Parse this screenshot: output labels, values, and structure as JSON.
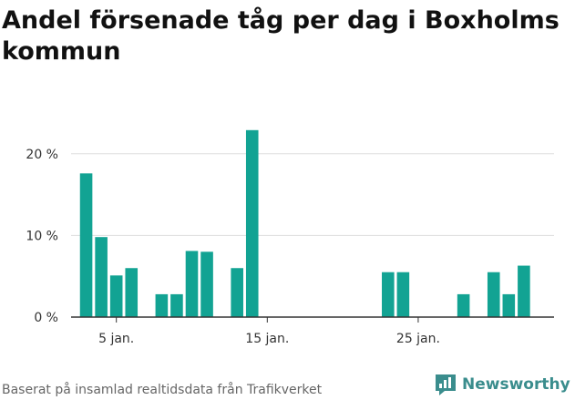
{
  "title": "Andel försenade tåg per dag i Boxholms kommun",
  "footer": "Baserat på insamlad realtidsdata från Trafikverket",
  "brand": {
    "name": "Newsworthy",
    "icon": "newsworthy-logo-icon",
    "color": "#3a8d8d"
  },
  "colors": {
    "bar": "#12a393",
    "grid": "#dddddd",
    "axis": "#333333"
  },
  "chart_data": {
    "type": "bar",
    "title": "Andel försenade tåg per dag i Boxholms kommun",
    "xlabel": "",
    "ylabel": "",
    "x_unit": "day of January",
    "x": [
      3,
      4,
      5,
      6,
      8,
      9,
      10,
      11,
      13,
      14,
      23,
      24,
      28,
      30,
      31,
      32
    ],
    "values": [
      17.6,
      9.8,
      5.1,
      6.0,
      2.8,
      2.8,
      8.1,
      8.0,
      6.0,
      22.9,
      5.5,
      5.5,
      2.8,
      5.5,
      2.8,
      6.3
    ],
    "ylim": [
      0,
      25
    ],
    "xlim": [
      2,
      34
    ],
    "y_ticks": [
      {
        "value": 0,
        "label": "0 %"
      },
      {
        "value": 10,
        "label": "10 %"
      },
      {
        "value": 20,
        "label": "20 %"
      }
    ],
    "x_ticks": [
      {
        "value": 5,
        "label": "5 jan."
      },
      {
        "value": 15,
        "label": "15 jan."
      },
      {
        "value": 25,
        "label": "25 jan."
      }
    ],
    "grid": true,
    "legend": "none"
  }
}
